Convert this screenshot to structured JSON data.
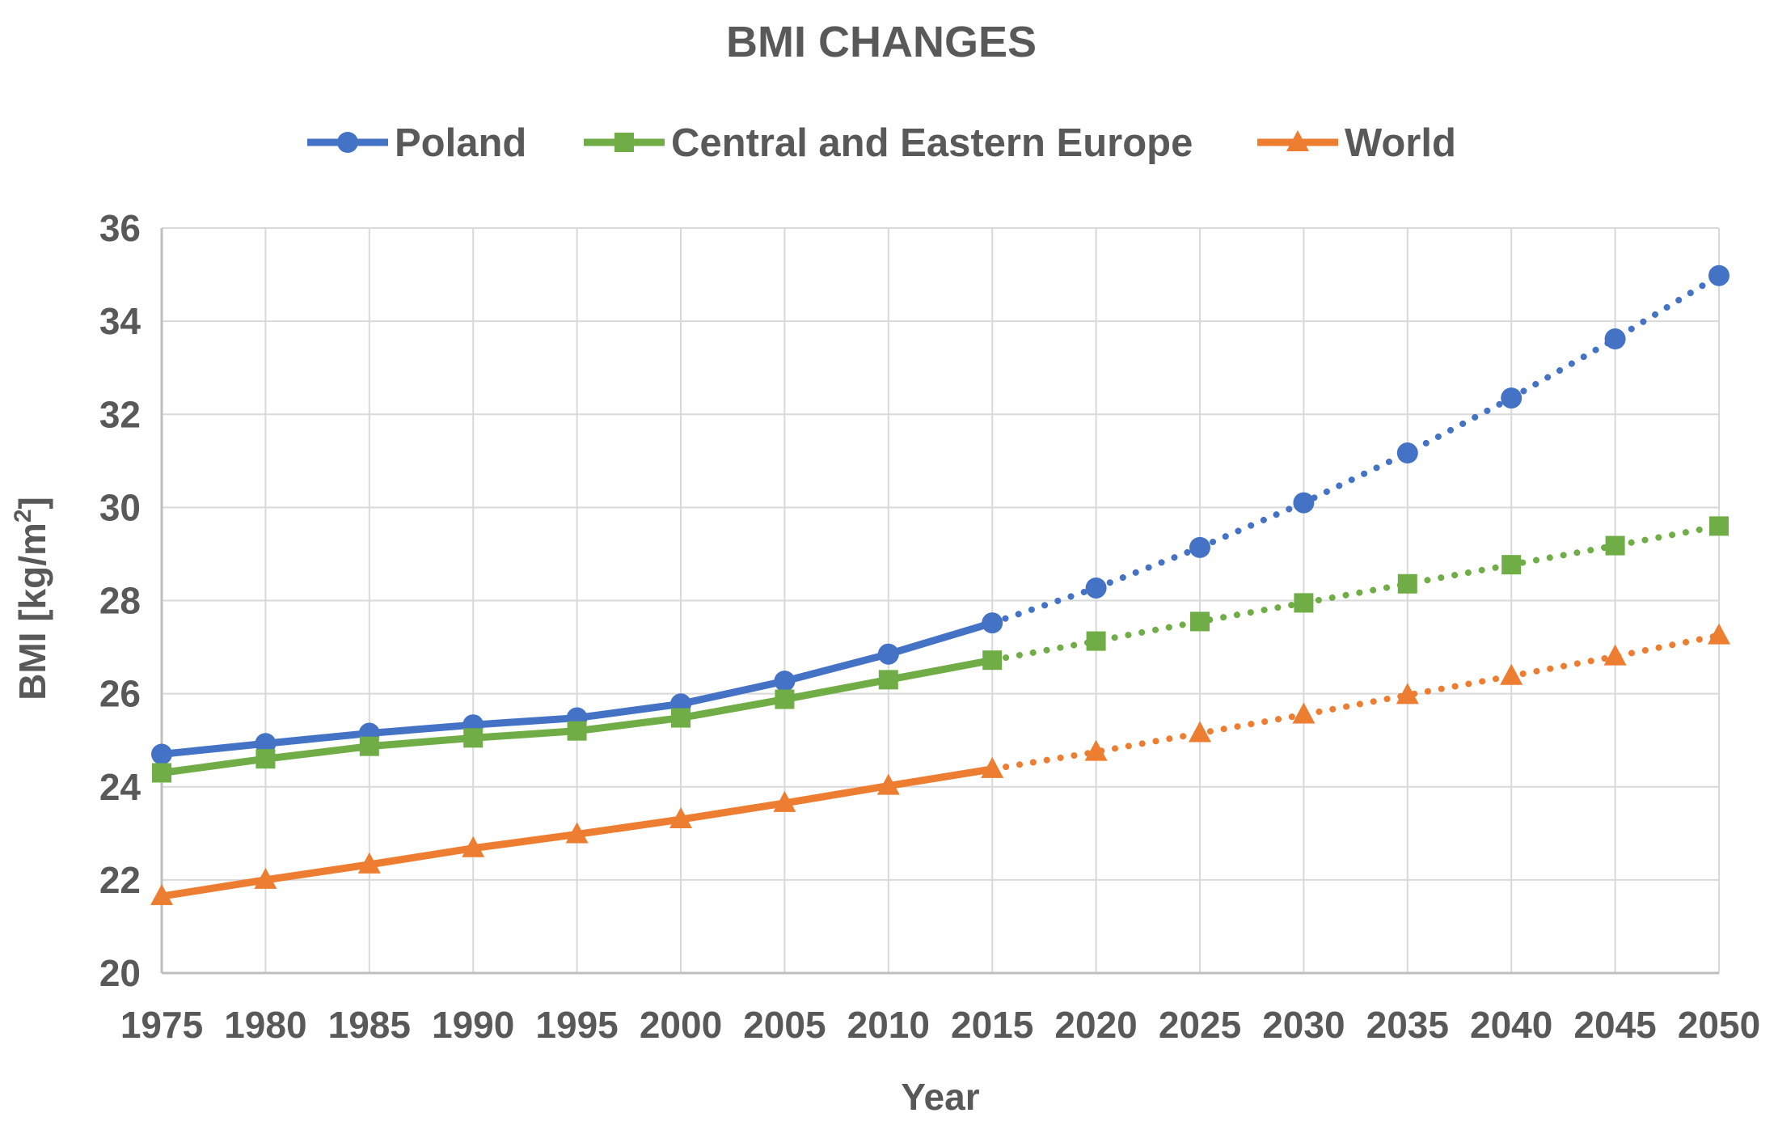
{
  "chart_data": {
    "type": "line",
    "title": "BMI CHANGES",
    "xlabel": "Year",
    "ylabel": "BMI [kg/m",
    "ylabel_superscript": "2",
    "ylabel_suffix": "]",
    "ylim": [
      20,
      36
    ],
    "ytick_step": 2,
    "yticks": [
      "20",
      "22",
      "24",
      "26",
      "28",
      "30",
      "32",
      "34",
      "36"
    ],
    "categories": [
      "1975",
      "1980",
      "1985",
      "1990",
      "1995",
      "2000",
      "2005",
      "2010",
      "2015",
      "2020",
      "2025",
      "2030",
      "2035",
      "2040",
      "2045",
      "2050"
    ],
    "historical_until": "2015",
    "grid": true,
    "legend_position": "top",
    "series": [
      {
        "name": "Poland",
        "color": "#4472c4",
        "marker": "circle",
        "values": [
          24.7,
          24.93,
          25.15,
          25.33,
          25.48,
          25.78,
          26.27,
          26.85,
          27.52,
          28.27,
          29.14,
          30.1,
          31.17,
          32.35,
          33.62,
          34.98
        ]
      },
      {
        "name": "Central and Eastern Europe",
        "color": "#70ad47",
        "marker": "square",
        "values": [
          24.3,
          24.6,
          24.87,
          25.05,
          25.2,
          25.48,
          25.88,
          26.3,
          26.72,
          27.13,
          27.55,
          27.95,
          28.36,
          28.77,
          29.18,
          29.6
        ]
      },
      {
        "name": "World",
        "color": "#ed7d31",
        "marker": "triangle",
        "values": [
          21.65,
          22.0,
          22.33,
          22.68,
          22.98,
          23.3,
          23.65,
          24.02,
          24.38,
          24.75,
          25.15,
          25.55,
          25.97,
          26.38,
          26.8,
          27.25
        ]
      }
    ]
  }
}
